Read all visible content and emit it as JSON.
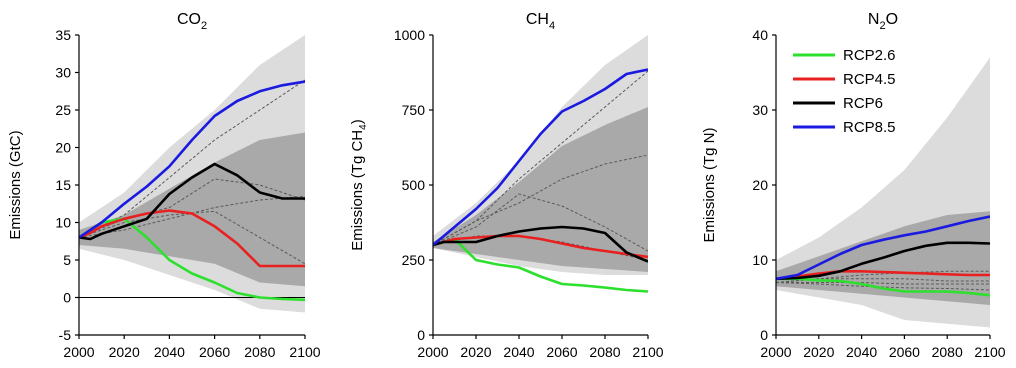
{
  "chart_data": [
    {
      "type": "line",
      "title": "CO2",
      "title_main": "CO",
      "title_sub": "2",
      "ylabel": "Emissions (GtC)",
      "xlim": [
        2000,
        2100
      ],
      "ylim": [
        -5,
        35
      ],
      "xticks": [
        2000,
        2020,
        2040,
        2060,
        2080,
        2100
      ],
      "yticks": [
        -5,
        0,
        5,
        10,
        15,
        20,
        25,
        30,
        35
      ],
      "zero_line": true,
      "band_outer": {
        "x": [
          2000,
          2020,
          2040,
          2060,
          2080,
          2100
        ],
        "upper": [
          10,
          14,
          20,
          25,
          31,
          35
        ],
        "lower": [
          6.5,
          5,
          3,
          1,
          -1.5,
          -2
        ]
      },
      "band_inner": {
        "x": [
          2000,
          2020,
          2040,
          2060,
          2080,
          2100
        ],
        "upper": [
          9,
          11,
          14.5,
          18,
          21,
          22
        ],
        "lower": [
          7,
          6.5,
          5.5,
          4.5,
          2,
          1.5
        ]
      },
      "dashed_series": [
        {
          "x": [
            2000,
            2020,
            2040,
            2060,
            2080,
            2100
          ],
          "values": [
            8,
            11,
            16,
            21,
            25,
            29
          ]
        },
        {
          "x": [
            2000,
            2020,
            2040,
            2060,
            2080,
            2100
          ],
          "values": [
            8,
            10.5,
            12,
            15.8,
            15,
            13
          ]
        },
        {
          "x": [
            2000,
            2020,
            2040,
            2060,
            2080,
            2100
          ],
          "values": [
            8,
            9,
            10.5,
            12,
            13,
            13.5
          ]
        },
        {
          "x": [
            2000,
            2020,
            2040,
            2060,
            2080,
            2100
          ],
          "values": [
            8,
            10,
            11,
            11.5,
            8,
            4.5
          ]
        }
      ],
      "series": [
        {
          "name": "RCP2.6",
          "color": "#2de02d",
          "x": [
            2000,
            2005,
            2010,
            2020,
            2030,
            2040,
            2050,
            2060,
            2070,
            2080,
            2090,
            2100
          ],
          "values": [
            8,
            9,
            10,
            10.5,
            8,
            5,
            3.2,
            2,
            0.6,
            0,
            -0.2,
            -0.3
          ]
        },
        {
          "name": "RCP4.5",
          "color": "#e82020",
          "x": [
            2000,
            2005,
            2010,
            2020,
            2030,
            2040,
            2050,
            2060,
            2070,
            2080,
            2090,
            2100
          ],
          "values": [
            8,
            8.6,
            9.5,
            10.5,
            11.2,
            11.6,
            11.2,
            9.5,
            7.2,
            4.2,
            4.2,
            4.2
          ]
        },
        {
          "name": "RCP6",
          "color": "#000000",
          "x": [
            2000,
            2005,
            2010,
            2020,
            2030,
            2040,
            2050,
            2060,
            2070,
            2080,
            2090,
            2100
          ],
          "values": [
            8,
            7.8,
            8.5,
            9.5,
            10.5,
            13.8,
            16,
            17.8,
            16.3,
            14,
            13.2,
            13.2
          ]
        },
        {
          "name": "RCP8.5",
          "color": "#1a1ae0",
          "x": [
            2000,
            2005,
            2010,
            2020,
            2030,
            2040,
            2050,
            2060,
            2070,
            2080,
            2090,
            2100
          ],
          "values": [
            8,
            9,
            10,
            12.5,
            14.8,
            17.5,
            21,
            24.2,
            26.2,
            27.5,
            28.3,
            28.8
          ]
        }
      ]
    },
    {
      "type": "line",
      "title": "CH4",
      "title_main": "CH",
      "title_sub": "4",
      "ylabel": "Emissions (Tg CH4)",
      "ylabel_main": "Emissions (Tg CH",
      "ylabel_sub": "4",
      "ylabel_end": ")",
      "xlim": [
        2000,
        2100
      ],
      "ylim": [
        0,
        1000
      ],
      "xticks": [
        2000,
        2020,
        2040,
        2060,
        2080,
        2100
      ],
      "yticks": [
        0,
        250,
        500,
        750,
        1000
      ],
      "zero_line": false,
      "band_outer": {
        "x": [
          2000,
          2020,
          2040,
          2060,
          2080,
          2100
        ],
        "upper": [
          330,
          440,
          580,
          760,
          900,
          1000
        ],
        "lower": [
          290,
          260,
          230,
          210,
          200,
          200
        ]
      },
      "band_inner": {
        "x": [
          2000,
          2020,
          2040,
          2060,
          2080,
          2100
        ],
        "upper": [
          310,
          400,
          510,
          630,
          700,
          760
        ],
        "lower": [
          290,
          270,
          250,
          230,
          220,
          210
        ]
      },
      "dashed_series": [
        {
          "x": [
            2000,
            2020,
            2040,
            2060,
            2080,
            2100
          ],
          "values": [
            300,
            380,
            520,
            640,
            760,
            880
          ]
        },
        {
          "x": [
            2000,
            2020,
            2040,
            2060,
            2080,
            2100
          ],
          "values": [
            300,
            380,
            440,
            520,
            570,
            600
          ]
        },
        {
          "x": [
            2000,
            2020,
            2040,
            2060,
            2080,
            2100
          ],
          "values": [
            300,
            360,
            470,
            430,
            360,
            280
          ]
        },
        {
          "x": [
            2000,
            2020,
            2040,
            2060,
            2080,
            2100
          ],
          "values": [
            300,
            330,
            330,
            310,
            280,
            250
          ]
        }
      ],
      "series": [
        {
          "name": "RCP2.6",
          "color": "#2de02d",
          "x": [
            2000,
            2005,
            2010,
            2020,
            2030,
            2040,
            2050,
            2060,
            2070,
            2080,
            2090,
            2100
          ],
          "values": [
            300,
            310,
            320,
            250,
            235,
            225,
            195,
            170,
            165,
            158,
            150,
            145
          ]
        },
        {
          "name": "RCP4.5",
          "color": "#e82020",
          "x": [
            2000,
            2005,
            2010,
            2020,
            2030,
            2040,
            2050,
            2060,
            2070,
            2080,
            2090,
            2100
          ],
          "values": [
            300,
            310,
            320,
            325,
            330,
            330,
            320,
            305,
            290,
            280,
            270,
            260
          ]
        },
        {
          "name": "RCP6",
          "color": "#000000",
          "x": [
            2000,
            2005,
            2010,
            2020,
            2030,
            2040,
            2050,
            2060,
            2070,
            2080,
            2090,
            2100
          ],
          "values": [
            300,
            310,
            310,
            310,
            330,
            345,
            355,
            360,
            355,
            340,
            275,
            245
          ]
        },
        {
          "name": "RCP8.5",
          "color": "#1a1ae0",
          "x": [
            2000,
            2005,
            2010,
            2020,
            2030,
            2040,
            2050,
            2060,
            2070,
            2080,
            2090,
            2100
          ],
          "values": [
            300,
            330,
            360,
            420,
            490,
            580,
            670,
            745,
            780,
            820,
            870,
            885
          ]
        }
      ]
    },
    {
      "type": "line",
      "title": "N2O",
      "title_main": "N",
      "title_sub": "2",
      "title_end": "O",
      "ylabel": "Emissions (Tg N)",
      "xlim": [
        2000,
        2100
      ],
      "ylim": [
        0,
        40
      ],
      "xticks": [
        2000,
        2020,
        2040,
        2060,
        2080,
        2100
      ],
      "yticks": [
        0,
        10,
        20,
        30,
        40
      ],
      "zero_line": false,
      "band_outer": {
        "x": [
          2000,
          2020,
          2040,
          2060,
          2080,
          2100
        ],
        "upper": [
          10,
          13,
          17,
          22,
          29,
          37
        ],
        "lower": [
          6,
          5,
          4,
          2,
          1.5,
          1
        ]
      },
      "band_inner": {
        "x": [
          2000,
          2020,
          2040,
          2060,
          2080,
          2100
        ],
        "upper": [
          8.5,
          10.5,
          12.5,
          14.5,
          16,
          16.5
        ],
        "lower": [
          6.5,
          6,
          5.5,
          5,
          4.5,
          4
        ]
      },
      "dashed_series": [
        {
          "x": [
            2000,
            2020,
            2040,
            2060,
            2080,
            2100
          ],
          "values": [
            7,
            7.5,
            8,
            8.3,
            8.5,
            8.5
          ]
        },
        {
          "x": [
            2000,
            2020,
            2040,
            2060,
            2080,
            2100
          ],
          "values": [
            7,
            7.5,
            7.5,
            7.5,
            7.2,
            7.2
          ]
        },
        {
          "x": [
            2000,
            2020,
            2040,
            2060,
            2080,
            2100
          ],
          "values": [
            7,
            7,
            7,
            6.8,
            6.8,
            6.8
          ]
        },
        {
          "x": [
            2000,
            2020,
            2040,
            2060,
            2080,
            2100
          ],
          "values": [
            7,
            6.8,
            6.5,
            6.3,
            6.2,
            6
          ]
        }
      ],
      "series": [
        {
          "name": "RCP2.6",
          "color": "#2de02d",
          "x": [
            2000,
            2010,
            2020,
            2030,
            2040,
            2050,
            2060,
            2070,
            2080,
            2090,
            2100
          ],
          "values": [
            7.5,
            7.5,
            7.3,
            7.2,
            6.8,
            6.2,
            5.8,
            5.8,
            5.8,
            5.6,
            5.3
          ]
        },
        {
          "name": "RCP4.5",
          "color": "#e82020",
          "x": [
            2000,
            2010,
            2020,
            2030,
            2040,
            2050,
            2060,
            2070,
            2080,
            2090,
            2100
          ],
          "values": [
            7.5,
            7.8,
            8.2,
            8.5,
            8.5,
            8.4,
            8.3,
            8.2,
            8.1,
            8,
            8
          ]
        },
        {
          "name": "RCP6",
          "color": "#000000",
          "x": [
            2000,
            2010,
            2020,
            2030,
            2040,
            2050,
            2060,
            2070,
            2080,
            2090,
            2100
          ],
          "values": [
            7.5,
            7.6,
            7.9,
            8.5,
            9.5,
            10.3,
            11.2,
            11.9,
            12.3,
            12.3,
            12.2
          ]
        },
        {
          "name": "RCP8.5",
          "color": "#1a1ae0",
          "x": [
            2000,
            2010,
            2020,
            2030,
            2040,
            2050,
            2060,
            2070,
            2080,
            2090,
            2100
          ],
          "values": [
            7.5,
            8,
            9.4,
            10.8,
            12,
            12.7,
            13.3,
            13.8,
            14.5,
            15.2,
            15.8
          ]
        }
      ]
    }
  ],
  "legend": {
    "placement": "top-left of third panel",
    "items": [
      {
        "label": "RCP2.6",
        "color": "#2de02d"
      },
      {
        "label": "RCP4.5",
        "color": "#e82020"
      },
      {
        "label": "RCP6",
        "color": "#000000"
      },
      {
        "label": "RCP8.5",
        "color": "#1a1ae0"
      }
    ]
  },
  "colors": {
    "band_outer": "#dcdcdc",
    "band_inner": "#a9a9a9",
    "dashed": "#5a5a5a"
  }
}
